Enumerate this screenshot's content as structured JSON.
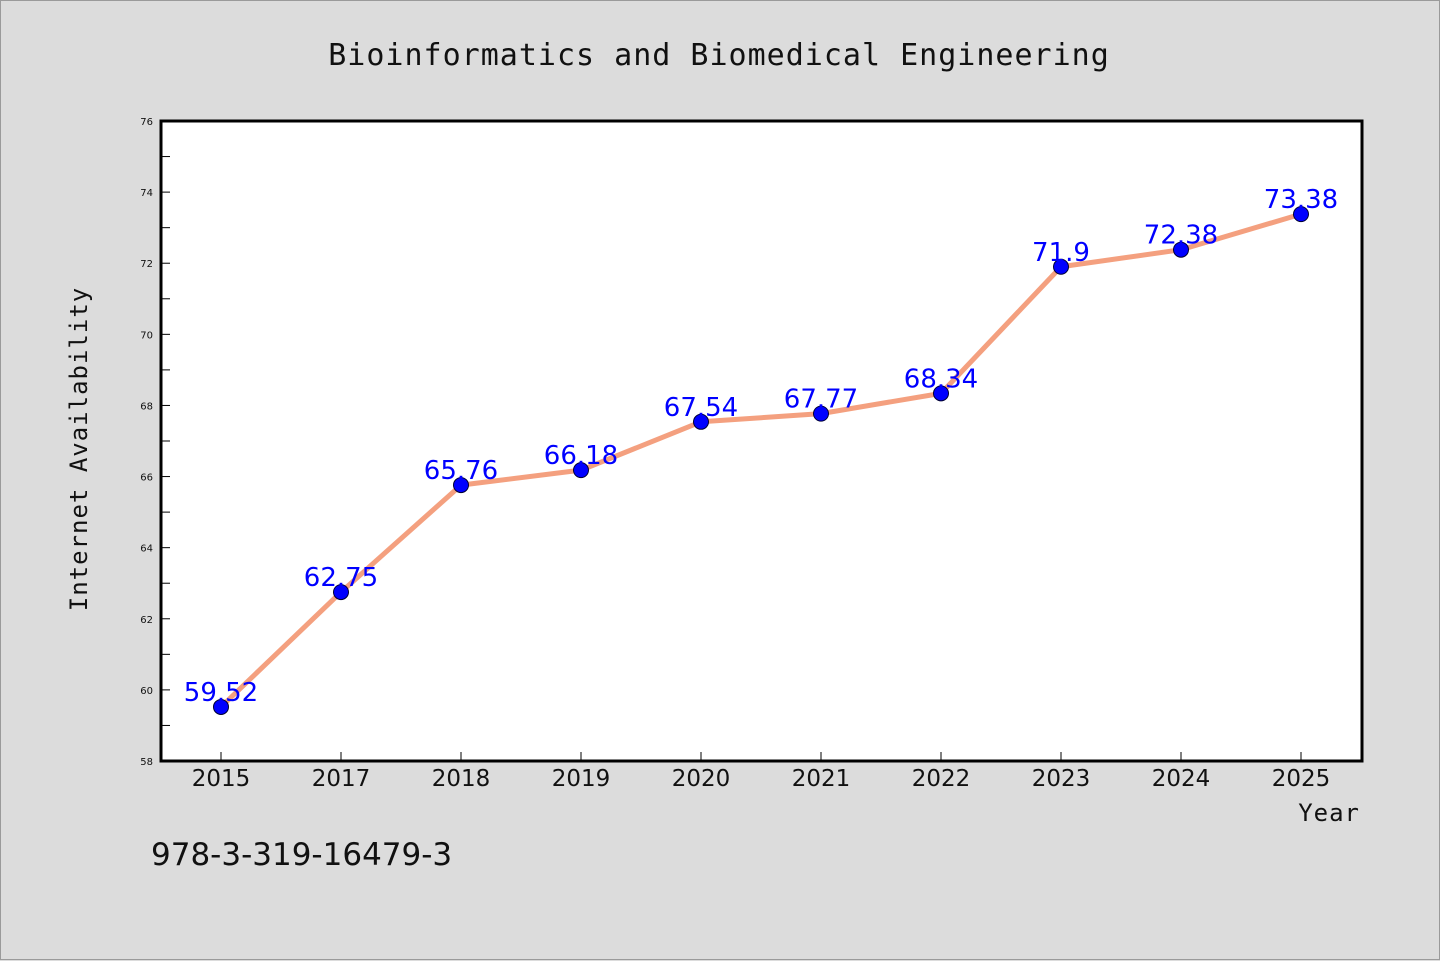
{
  "chart_data": {
    "type": "line",
    "title": "Bioinformatics and Biomedical Engineering",
    "xlabel": "Year",
    "ylabel": "Internet Availability",
    "categories": [
      "2015",
      "2017",
      "2018",
      "2019",
      "2020",
      "2021",
      "2022",
      "2023",
      "2024",
      "2025"
    ],
    "series": [
      {
        "values": [
          59.52,
          62.75,
          65.76,
          66.18,
          67.54,
          67.77,
          68.34,
          71.9,
          72.38,
          73.38
        ],
        "labels": [
          "59.52",
          "62.75",
          "65.76",
          "66.18",
          "67.54",
          "67.77",
          "68.34",
          "71.9",
          "72.38",
          "73.38"
        ]
      }
    ],
    "ylim": [
      58,
      76
    ],
    "yticks": [
      58,
      60,
      62,
      64,
      66,
      68,
      70,
      72,
      74,
      76
    ],
    "grid": false,
    "legend": "none",
    "line_color": "#f4a07f",
    "marker_color": "#0000ff",
    "label_color": "#0000ff"
  },
  "footnote": "978-3-319-16479-3"
}
